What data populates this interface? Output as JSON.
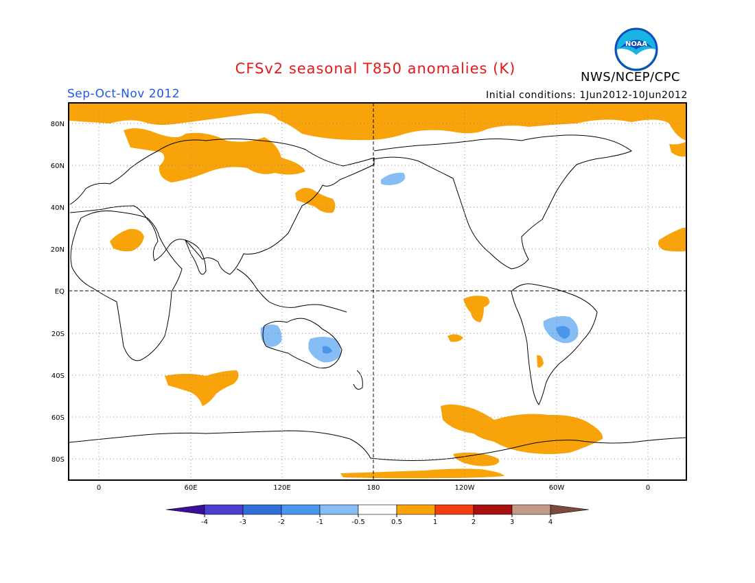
{
  "title": "CFSv2 seasonal T850 anomalies (K)",
  "agency": "NWS/NCEP/CPC",
  "logo_text": "NOAA",
  "season": "Sep-Oct-Nov 2012",
  "initial_conditions": "Initial conditions: 1Jun2012-10Jun2012",
  "map": {
    "projection": "equirectangular",
    "center_longitude": 180,
    "lon_labels": [
      "0",
      "60E",
      "120E",
      "180",
      "120W",
      "60W",
      "0"
    ],
    "lat_labels": [
      "80N",
      "60N",
      "40N",
      "20N",
      "EQ",
      "20S",
      "40S",
      "60S",
      "80S"
    ],
    "grid": "dotted",
    "reference_lines": [
      "EQ",
      "180"
    ]
  },
  "colorbar": {
    "ticks": [
      "-4",
      "-3",
      "-2",
      "-1",
      "-0.5",
      "0.5",
      "1",
      "2",
      "3",
      "4"
    ],
    "colors": [
      "#3c0f9a",
      "#4a3fd1",
      "#2f6fd8",
      "#4a96ec",
      "#87bdf5",
      "#ffffff",
      "#f9a30a",
      "#f13e0f",
      "#a80f0f",
      "#c49b86",
      "#7a4b3c"
    ]
  },
  "anomaly_regions": [
    {
      "name": "arctic-cap",
      "sign": "warm"
    },
    {
      "name": "siberia",
      "sign": "warm"
    },
    {
      "name": "japan-kuril",
      "sign": "warm"
    },
    {
      "name": "sahara",
      "sign": "warm"
    },
    {
      "name": "southern-indian-ocean",
      "sign": "warm"
    },
    {
      "name": "south-pacific-equatorial",
      "sign": "warm"
    },
    {
      "name": "southern-ocean-pacific",
      "sign": "warm"
    },
    {
      "name": "west-australia",
      "sign": "cool"
    },
    {
      "name": "east-australia",
      "sign": "cool"
    },
    {
      "name": "alaska-gulf",
      "sign": "cool"
    },
    {
      "name": "brazil",
      "sign": "cool"
    }
  ]
}
